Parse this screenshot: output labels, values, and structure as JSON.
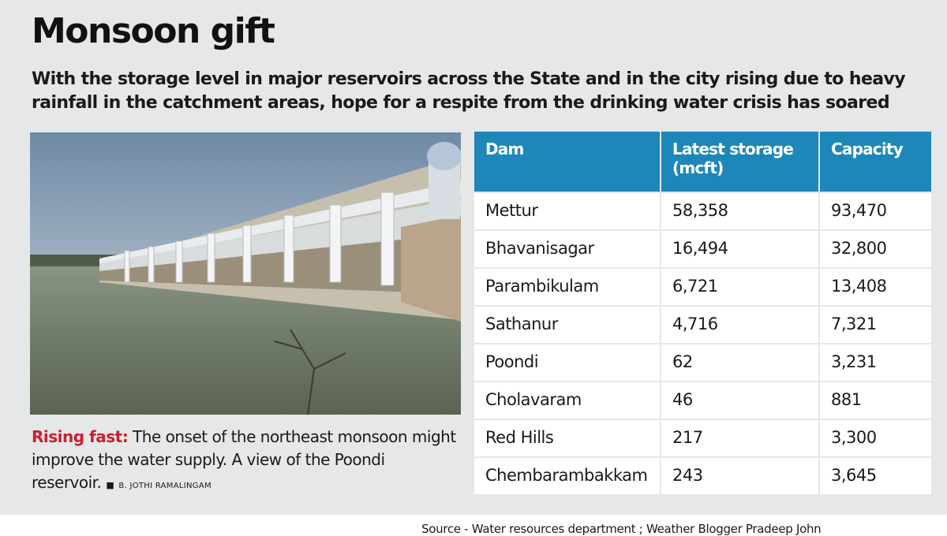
{
  "header": {
    "title": "Monsoon gift",
    "subtitle": "With the storage level in major reservoirs across the State and in the city rising due to heavy rainfall in the catchment areas, hope for a respite from the drinking water crisis has soared"
  },
  "photo": {
    "caption_lead": "Rising fast:",
    "caption_text": " The onset of the northeast monsoon might improve the water supply. A view of the Poondi reservoir.",
    "credit": "B. JOTHI RAMALINGAM"
  },
  "source": "Source - Water resources department ; Weather Blogger Pradeep John",
  "colors": {
    "header_blue": "#1e87b9",
    "lead_red": "#cc1f2d",
    "panel_grey": "#e6e7e8"
  },
  "chart_data": {
    "type": "table",
    "columns": [
      "Dam",
      "Latest storage (mcft)",
      "Capacity"
    ],
    "rows": [
      [
        "Mettur",
        "58,358",
        "93,470"
      ],
      [
        "Bhavanisagar",
        "16,494",
        "32,800"
      ],
      [
        "Parambikulam",
        "6,721",
        "13,408"
      ],
      [
        "Sathanur",
        "4,716",
        "7,321"
      ],
      [
        "Poondi",
        "62",
        "3,231"
      ],
      [
        "Cholavaram",
        "46",
        "881"
      ],
      [
        "Red Hills",
        "217",
        "3,300"
      ],
      [
        "Chembarambakkam",
        "243",
        "3,645"
      ]
    ]
  }
}
